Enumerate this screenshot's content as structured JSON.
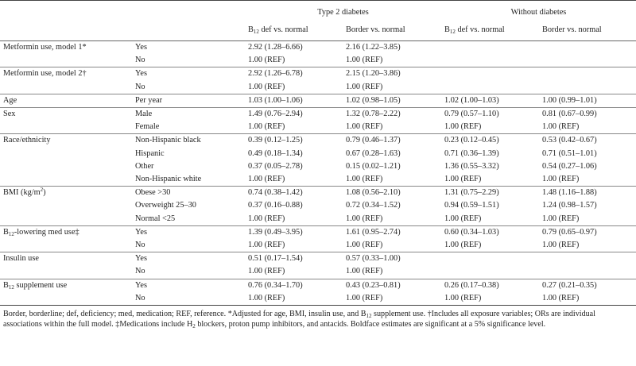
{
  "header": {
    "group1": "Type 2 diabetes",
    "group2": "Without diabetes",
    "col_def_prefix": "B",
    "col_def_sub": "12",
    "col_def_suffix": " def vs. normal",
    "col_border": "Border vs. normal"
  },
  "rows": [
    {
      "cat": "Metformin use, model 1*",
      "level": "Yes",
      "v": [
        {
          "t": "2.92 (1.28–6.66)",
          "b": true
        },
        {
          "t": "2.16 (1.22–3.85)",
          "b": true
        },
        {
          "t": "",
          "b": false
        },
        {
          "t": "",
          "b": false
        }
      ],
      "sep": true
    },
    {
      "cat": "",
      "level": "No",
      "v": [
        {
          "t": "1.00 (REF)",
          "b": false
        },
        {
          "t": "1.00 (REF)",
          "b": false
        },
        {
          "t": "",
          "b": false
        },
        {
          "t": "",
          "b": false
        }
      ],
      "sep": false
    },
    {
      "cat": "Metformin use, model 2†",
      "level": "Yes",
      "v": [
        {
          "t": "2.92 (1.26–6.78)",
          "b": true
        },
        {
          "t": "2.15 (1.20–3.86)",
          "b": true
        },
        {
          "t": "",
          "b": false
        },
        {
          "t": "",
          "b": false
        }
      ],
      "sep": true
    },
    {
      "cat": "",
      "level": "No",
      "v": [
        {
          "t": "1.00 (REF)",
          "b": false
        },
        {
          "t": "1.00 (REF)",
          "b": false
        },
        {
          "t": "",
          "b": false
        },
        {
          "t": "",
          "b": false
        }
      ],
      "sep": false
    },
    {
      "cat": "Age",
      "level": "Per year",
      "v": [
        {
          "t": "1.03 (1.00–1.06)",
          "b": true
        },
        {
          "t": "1.02 (0.98–1.05)",
          "b": false
        },
        {
          "t": "1.02 (1.00–1.03)",
          "b": true
        },
        {
          "t": "1.00 (0.99–1.01)",
          "b": false
        }
      ],
      "sep": true
    },
    {
      "cat": "Sex",
      "level": "Male",
      "v": [
        {
          "t": "1.49 (0.76–2.94)",
          "b": false
        },
        {
          "t": "1.32 (0.78–2.22)",
          "b": false
        },
        {
          "t": "0.79 (0.57–1.10)",
          "b": false
        },
        {
          "t": "0.81 (0.67–0.99)",
          "b": false
        }
      ],
      "sep": true
    },
    {
      "cat": "",
      "level": "Female",
      "v": [
        {
          "t": "1.00 (REF)",
          "b": false
        },
        {
          "t": "1.00 (REF)",
          "b": false
        },
        {
          "t": "1.00 (REF)",
          "b": false
        },
        {
          "t": "1.00 (REF)",
          "b": false
        }
      ],
      "sep": false
    },
    {
      "cat": "Race/ethnicity",
      "level": "Non-Hispanic black",
      "v": [
        {
          "t": "0.39 (0.12–1.25)",
          "b": false
        },
        {
          "t": "0.79 (0.46–1.37)",
          "b": false
        },
        {
          "t": "0.23 (0.12–0.45)",
          "b": false
        },
        {
          "t": "0.53 (0.42–0.67)",
          "b": true
        }
      ],
      "sep": true
    },
    {
      "cat": "",
      "level": "Hispanic",
      "v": [
        {
          "t": "0.49 (0.18–1.34)",
          "b": false
        },
        {
          "t": "0.67 (0.28–1.63)",
          "b": false
        },
        {
          "t": "0.71 (0.36–1.39)",
          "b": false
        },
        {
          "t": "0.71 (0.51–1.01)",
          "b": false
        }
      ],
      "sep": false
    },
    {
      "cat": "",
      "level": "Other",
      "v": [
        {
          "t": "0.37 (0.05–2.78)",
          "b": false
        },
        {
          "t": "0.15 (0.02–1.21)",
          "b": false
        },
        {
          "t": "1.36 (0.55–3.32)",
          "b": false
        },
        {
          "t": "0.54 (0.27–1.06)",
          "b": false
        }
      ],
      "sep": false
    },
    {
      "cat": "",
      "level": "Non-Hispanic white",
      "v": [
        {
          "t": "1.00 (REF)",
          "b": false
        },
        {
          "t": "1.00 (REF)",
          "b": false
        },
        {
          "t": "1.00 (REF)",
          "b": false
        },
        {
          "t": "1.00 (REF)",
          "b": false
        }
      ],
      "sep": false
    },
    {
      "cat": "BMI (kg/m²)",
      "level": "Obese >30",
      "v": [
        {
          "t": "0.74 (0.38–1.42)",
          "b": false
        },
        {
          "t": "1.08 (0.56–2.10)",
          "b": false
        },
        {
          "t": "1.31 (0.75–2.29)",
          "b": false
        },
        {
          "t": "1.48 (1.16–1.88)",
          "b": true
        }
      ],
      "sep": true
    },
    {
      "cat": "",
      "level": "Overweight 25–30",
      "v": [
        {
          "t": "0.37 (0.16–0.88)",
          "b": true
        },
        {
          "t": "0.72 (0.34–1.52)",
          "b": false
        },
        {
          "t": "0.94 (0.59–1.51)",
          "b": false
        },
        {
          "t": "1.24 (0.98–1.57)",
          "b": false
        }
      ],
      "sep": false
    },
    {
      "cat": "",
      "level": "Normal <25",
      "v": [
        {
          "t": "1.00 (REF)",
          "b": false
        },
        {
          "t": "1.00 (REF)",
          "b": false
        },
        {
          "t": "1.00 (REF)",
          "b": false
        },
        {
          "t": "1.00 (REF)",
          "b": false
        }
      ],
      "sep": false
    },
    {
      "cat": "B12-lowering med use‡",
      "level": "Yes",
      "v": [
        {
          "t": "1.39 (0.49–3.95)",
          "b": false
        },
        {
          "t": "1.61 (0.95–2.74)",
          "b": false
        },
        {
          "t": "0.60 (0.34–1.03)",
          "b": false
        },
        {
          "t": "0.79 (0.65–0.97)",
          "b": true
        }
      ],
      "sep": true
    },
    {
      "cat": "",
      "level": "No",
      "v": [
        {
          "t": "1.00 (REF)",
          "b": false
        },
        {
          "t": "1.00 (REF)",
          "b": false
        },
        {
          "t": "1.00 (REF)",
          "b": false
        },
        {
          "t": "1.00 (REF)",
          "b": false
        }
      ],
      "sep": false
    },
    {
      "cat": "Insulin use",
      "level": "Yes",
      "v": [
        {
          "t": "0.51 (0.17–1.54)",
          "b": false
        },
        {
          "t": "0.57 (0.33–1.00)",
          "b": true
        },
        {
          "t": "",
          "b": false
        },
        {
          "t": "",
          "b": false
        }
      ],
      "sep": true
    },
    {
      "cat": "",
      "level": "No",
      "v": [
        {
          "t": "1.00 (REF)",
          "b": false
        },
        {
          "t": "1.00 (REF)",
          "b": false
        },
        {
          "t": "",
          "b": false
        },
        {
          "t": "",
          "b": false
        }
      ],
      "sep": false
    },
    {
      "cat": "B12 supplement use",
      "level": "Yes",
      "v": [
        {
          "t": "0.76 (0.34–1.70)",
          "b": false
        },
        {
          "t": "0.43 (0.23–0.81)",
          "b": true
        },
        {
          "t": "0.26 (0.17–0.38)",
          "b": true
        },
        {
          "t": "0.27 (0.21–0.35)",
          "b": true
        }
      ],
      "sep": true
    },
    {
      "cat": "",
      "level": "No",
      "v": [
        {
          "t": "1.00 (REF)",
          "b": false
        },
        {
          "t": "1.00 (REF)",
          "b": false
        },
        {
          "t": "1.00 (REF)",
          "b": false
        },
        {
          "t": "1.00 (REF)",
          "b": false
        }
      ],
      "sep": false
    }
  ],
  "footnote": "Border, borderline; def, deficiency; med, medication; REF, reference. *Adjusted for age, BMI, insulin use, and B12 supplement use. †Includes all exposure variables; ORs are individual associations within the full model. ‡Medications include H2 blockers, proton pump inhibitors, and antacids. Boldface estimates are significant at a 5% significance level."
}
